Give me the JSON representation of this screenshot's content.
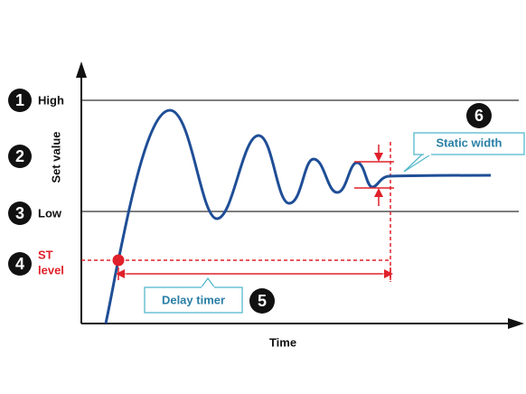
{
  "axes": {
    "y_label": "Set value",
    "x_label": "Time"
  },
  "levels": [
    {
      "number": "1",
      "label": "High"
    },
    {
      "number": "2"
    },
    {
      "number": "3",
      "label": "Low"
    },
    {
      "number": "4",
      "label": [
        "ST",
        "level"
      ]
    }
  ],
  "callouts": [
    {
      "number": "5",
      "label": "Delay timer"
    },
    {
      "number": "6",
      "label": "Static width"
    }
  ]
}
